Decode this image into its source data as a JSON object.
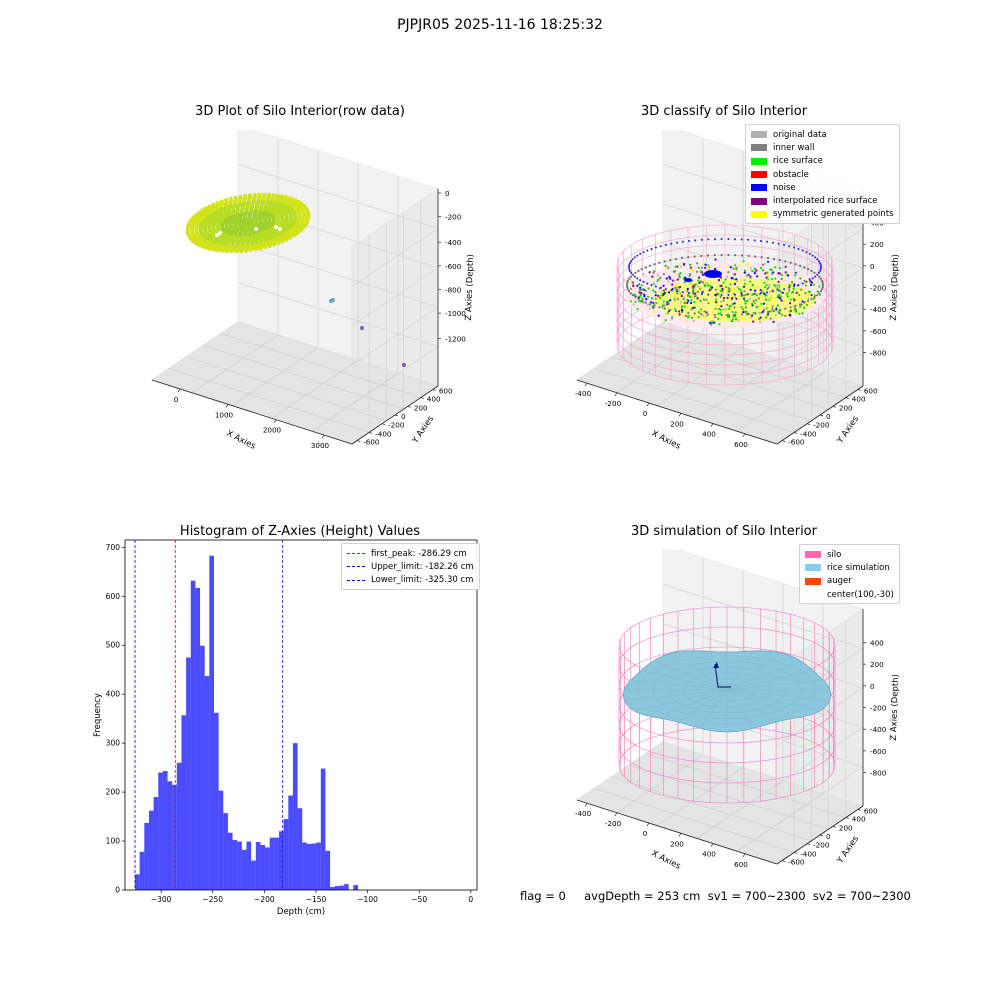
{
  "suptitle": "PJPJR05 2025-11-16 18:25:32",
  "status_line": "flag = 0     avgDepth = 253 cm  sv1 = 700~2300  sv2 = 700~2300",
  "panels": {
    "raw": {
      "title": "3D Plot of Silo Interior(row data)",
      "xlabel": "X Axies",
      "ylabel": "Y Axies",
      "zlabel": "Z Axies (Depth)",
      "xticks": [
        "0",
        "1000",
        "2000",
        "3000"
      ],
      "yticks": [
        "-600",
        "-400",
        "-200",
        "0",
        "200",
        "400",
        "600"
      ],
      "zticks": [
        "0",
        "-200",
        "-400",
        "-600",
        "-800",
        "-1000",
        "-1200"
      ]
    },
    "classify": {
      "title": "3D classify of Silo Interior",
      "xlabel": "X Axies",
      "ylabel": "Y Axies",
      "zlabel": "Z Axies (Depth)",
      "xticks": [
        "-400",
        "-200",
        "0",
        "200",
        "400",
        "600"
      ],
      "yticks": [
        "-600",
        "-400",
        "-200",
        "0",
        "200",
        "400",
        "600"
      ],
      "zticks": [
        "400",
        "200",
        "0",
        "-200",
        "-400",
        "-600",
        "-800"
      ],
      "legend": [
        {
          "label": "original data",
          "color": "#b0b0b0"
        },
        {
          "label": "inner wall",
          "color": "#808080"
        },
        {
          "label": "rice surface",
          "color": "#00ee00"
        },
        {
          "label": "obstacle",
          "color": "#ff0000"
        },
        {
          "label": "noise",
          "color": "#0000ff"
        },
        {
          "label": "interpolated rice surface",
          "color": "#800080"
        },
        {
          "label": "symmetric generated points",
          "color": "#ffff00"
        }
      ]
    },
    "simulation": {
      "title": "3D simulation of Silo Interior",
      "xlabel": "X Axies",
      "ylabel": "Y Axies",
      "zlabel": "Z Axies (Depth)",
      "xticks": [
        "-400",
        "-200",
        "0",
        "200",
        "400",
        "600"
      ],
      "yticks": [
        "-600",
        "-400",
        "-200",
        "0",
        "200",
        "400",
        "600"
      ],
      "zticks": [
        "400",
        "200",
        "0",
        "-200",
        "-400",
        "-600",
        "-800"
      ],
      "legend": [
        {
          "label": "silo",
          "color": "#ff69b4"
        },
        {
          "label": "rice simulation",
          "color": "#87ceeb"
        },
        {
          "label": "auger",
          "color": "#ff4500"
        },
        {
          "label": "center(100,-30)",
          "color": ""
        }
      ]
    }
  },
  "chart_data": {
    "type": "bar",
    "title": "Histogram of Z-Axies (Height) Values",
    "xlabel": "Depth (cm)",
    "ylabel": "Frequency",
    "xlim": [
      -335,
      6
    ],
    "ylim": [
      0,
      715
    ],
    "xticks": [
      -300,
      -250,
      -200,
      -150,
      -100,
      -50,
      0
    ],
    "yticks": [
      0,
      100,
      200,
      300,
      400,
      500,
      600,
      700
    ],
    "bar_color": "#0000ff",
    "bins": [
      {
        "x0": -325.3,
        "x1": -320.8,
        "v": 32
      },
      {
        "x0": -320.8,
        "x1": -316.3,
        "v": 78
      },
      {
        "x0": -316.3,
        "x1": -311.8,
        "v": 137
      },
      {
        "x0": -311.8,
        "x1": -307.3,
        "v": 162
      },
      {
        "x0": -307.3,
        "x1": -302.8,
        "v": 190
      },
      {
        "x0": -302.8,
        "x1": -298.3,
        "v": 240
      },
      {
        "x0": -298.3,
        "x1": -293.8,
        "v": 243
      },
      {
        "x0": -293.8,
        "x1": -289.3,
        "v": 222
      },
      {
        "x0": -289.3,
        "x1": -284.8,
        "v": 215
      },
      {
        "x0": -284.8,
        "x1": -280.3,
        "v": 260
      },
      {
        "x0": -280.3,
        "x1": -275.8,
        "v": 357
      },
      {
        "x0": -275.8,
        "x1": -271.3,
        "v": 475
      },
      {
        "x0": -271.3,
        "x1": -266.8,
        "v": 632
      },
      {
        "x0": -266.8,
        "x1": -262.3,
        "v": 617
      },
      {
        "x0": -262.3,
        "x1": -257.8,
        "v": 499
      },
      {
        "x0": -257.8,
        "x1": -253.3,
        "v": 437
      },
      {
        "x0": -253.3,
        "x1": -248.8,
        "v": 683
      },
      {
        "x0": -248.8,
        "x1": -244.3,
        "v": 362
      },
      {
        "x0": -244.3,
        "x1": -239.8,
        "v": 203
      },
      {
        "x0": -239.8,
        "x1": -235.3,
        "v": 157
      },
      {
        "x0": -235.3,
        "x1": -230.8,
        "v": 117
      },
      {
        "x0": -230.8,
        "x1": -226.3,
        "v": 102
      },
      {
        "x0": -226.3,
        "x1": -221.8,
        "v": 99
      },
      {
        "x0": -221.8,
        "x1": -217.3,
        "v": 82
      },
      {
        "x0": -217.3,
        "x1": -212.8,
        "v": 99
      },
      {
        "x0": -212.8,
        "x1": -208.3,
        "v": 60
      },
      {
        "x0": -208.3,
        "x1": -203.8,
        "v": 98
      },
      {
        "x0": -203.8,
        "x1": -199.3,
        "v": 92
      },
      {
        "x0": -199.3,
        "x1": -194.8,
        "v": 87
      },
      {
        "x0": -194.8,
        "x1": -190.3,
        "v": 107
      },
      {
        "x0": -190.3,
        "x1": -185.8,
        "v": 107
      },
      {
        "x0": -185.8,
        "x1": -181.3,
        "v": 120
      },
      {
        "x0": -181.3,
        "x1": -176.8,
        "v": 145
      },
      {
        "x0": -176.8,
        "x1": -172.3,
        "v": 193
      },
      {
        "x0": -172.3,
        "x1": -167.8,
        "v": 300
      },
      {
        "x0": -167.8,
        "x1": -163.3,
        "v": 167
      },
      {
        "x0": -163.3,
        "x1": -158.8,
        "v": 97
      },
      {
        "x0": -158.8,
        "x1": -154.3,
        "v": 94
      },
      {
        "x0": -154.3,
        "x1": -149.8,
        "v": 95
      },
      {
        "x0": -149.8,
        "x1": -145.3,
        "v": 97
      },
      {
        "x0": -145.3,
        "x1": -140.8,
        "v": 248
      },
      {
        "x0": -140.8,
        "x1": -136.3,
        "v": 80
      },
      {
        "x0": -136.3,
        "x1": -131.8,
        "v": 6
      },
      {
        "x0": -131.8,
        "x1": -127.3,
        "v": 8
      },
      {
        "x0": -127.3,
        "x1": -122.8,
        "v": 9
      },
      {
        "x0": -122.8,
        "x1": -118.3,
        "v": 12
      },
      {
        "x0": -118.3,
        "x1": -113.8,
        "v": 0
      },
      {
        "x0": -113.8,
        "x1": -109.3,
        "v": 10
      }
    ],
    "vlines": [
      {
        "label": "first_peak: -286.29 cm",
        "value": -286.29,
        "color": "#ff0000"
      },
      {
        "label": "Upper_limit: -182.26 cm",
        "value": -182.26,
        "color": "#0000ff"
      },
      {
        "label": "Lower_limit: -325.30 cm",
        "value": -325.3,
        "color": "#0000ff"
      }
    ],
    "legend_position": "upper right"
  }
}
